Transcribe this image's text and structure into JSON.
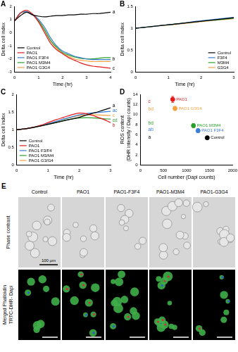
{
  "chart_data": [
    {
      "panel": "A",
      "type": "line",
      "x_label": "Time (hr)",
      "y_label": "Delta cell index",
      "x": [
        0,
        0.25,
        0.5,
        0.75,
        1,
        1.25,
        1.5,
        1.75,
        2,
        2.25,
        2.5,
        2.75,
        3,
        3.25,
        3.5,
        3.75,
        4
      ],
      "series": [
        {
          "name": "Control",
          "color": "#000000",
          "values": [
            0.9,
            1.3,
            1.55,
            1.35,
            1.25,
            1.2,
            1.25,
            1.3,
            1.3,
            1.35,
            1.35,
            1.4,
            1.4,
            1.45,
            1.45,
            1.5,
            1.55
          ]
        },
        {
          "name": "PAO1",
          "color": "#e41a1c",
          "values": [
            0.9,
            1.5,
            1.7,
            1.4,
            0.8,
            0,
            -0.8,
            -1.3,
            -1.6,
            -1.9,
            -2.1,
            -2.3,
            -2.45,
            -2.55,
            -2.6,
            -2.65,
            -2.7
          ]
        },
        {
          "name": "PAO1 F3F4",
          "color": "#3a7fd5",
          "values": [
            0.9,
            1.5,
            1.6,
            1.4,
            1.0,
            0.4,
            -0.4,
            -1.0,
            -1.4,
            -1.6,
            -1.8,
            -1.9,
            -2.0,
            -2.05,
            -2.05,
            -2.05,
            -2.05
          ]
        },
        {
          "name": "PAO1 M3M4",
          "color": "#2ca02c",
          "values": [
            0.9,
            1.5,
            1.6,
            1.35,
            0.9,
            0.2,
            -0.6,
            -1.1,
            -1.5,
            -1.7,
            -1.85,
            -1.95,
            -2.0,
            -2.0,
            -1.95,
            -1.9,
            -1.9
          ]
        },
        {
          "name": "PAO1 G3G4",
          "color": "#f5a142",
          "values": [
            0.9,
            1.5,
            1.6,
            1.4,
            0.9,
            0.2,
            -0.6,
            -1.2,
            -1.6,
            -1.8,
            -2.0,
            -2.1,
            -2.15,
            -2.2,
            -2.2,
            -2.2,
            -2.2
          ]
        }
      ],
      "xlim": [
        0,
        4
      ],
      "xticks": [
        0,
        1,
        2,
        3,
        4
      ],
      "ylim": [
        -3,
        2
      ],
      "yticks": [
        -3,
        -2,
        -1,
        0,
        1,
        2
      ],
      "grid": false,
      "legend": "lower left",
      "annotations": [
        {
          "text": "a",
          "x": 4.08,
          "y": 1.55,
          "color": "#000000"
        },
        {
          "text": "b",
          "x": 4.08,
          "y": -2.0,
          "color": "#000000"
        },
        {
          "text": "c",
          "x": 4.08,
          "y": -2.7,
          "color": "#000000"
        }
      ]
    },
    {
      "panel": "B",
      "type": "line",
      "x_label": "Time (hr)",
      "y_label": "Delta cell index",
      "x": [
        0,
        0.25,
        0.5,
        0.75,
        1,
        1.25,
        1.5,
        1.75,
        2,
        2.25,
        2.5,
        2.75,
        3
      ],
      "series": [
        {
          "name": "Control",
          "color": "#000000",
          "values": [
            1.0,
            1.02,
            1.04,
            1.06,
            1.08,
            1.1,
            1.12,
            1.14,
            1.16,
            1.18,
            1.2,
            1.22,
            1.24
          ]
        },
        {
          "name": "F3F4",
          "color": "#3a7fd5",
          "values": [
            1.0,
            1.02,
            1.04,
            1.06,
            1.08,
            1.1,
            1.12,
            1.15,
            1.17,
            1.19,
            1.21,
            1.23,
            1.25
          ]
        },
        {
          "name": "M3M4",
          "color": "#2ca02c",
          "values": [
            1.0,
            1.02,
            1.04,
            1.06,
            1.08,
            1.1,
            1.12,
            1.14,
            1.16,
            1.18,
            1.19,
            1.21,
            1.23
          ]
        },
        {
          "name": "G3G4",
          "color": "#f5a142",
          "values": [
            1.0,
            1.02,
            1.04,
            1.06,
            1.07,
            1.09,
            1.11,
            1.13,
            1.15,
            1.17,
            1.19,
            1.2,
            1.22
          ]
        }
      ],
      "xlim": [
        0,
        3
      ],
      "xticks": [
        0,
        1,
        2,
        3
      ],
      "ylim": [
        0,
        1.5
      ],
      "yticks": [
        0,
        0.5,
        1,
        1.5
      ],
      "grid": false,
      "legend": "lower right"
    },
    {
      "panel": "C",
      "type": "line",
      "x_label": "Time (hr)",
      "y_label": "Delta cell index",
      "x": [
        0,
        0.25,
        0.5,
        0.75,
        1,
        1.25,
        1.5,
        1.75,
        2,
        2.25,
        2.5,
        2.75,
        3
      ],
      "series": [
        {
          "name": "Control",
          "color": "#000000",
          "values": [
            1.0,
            1.02,
            1.06,
            1.1,
            1.15,
            1.2,
            1.25,
            1.3,
            1.35,
            1.42,
            1.48,
            1.55,
            1.62
          ]
        },
        {
          "name": "PAO1",
          "color": "#e41a1c",
          "values": [
            1.0,
            1.02,
            1.06,
            1.12,
            1.2,
            1.28,
            1.35,
            1.42,
            1.47,
            1.45,
            1.38,
            1.3,
            1.2
          ]
        },
        {
          "name": "PAO1 F3/F4",
          "color": "#3a7fd5",
          "values": [
            1.0,
            1.02,
            1.06,
            1.11,
            1.17,
            1.23,
            1.3,
            1.36,
            1.42,
            1.46,
            1.48,
            1.5,
            1.52
          ]
        },
        {
          "name": "PAO1 M3/M4",
          "color": "#2ca02c",
          "values": [
            1.0,
            1.02,
            1.05,
            1.1,
            1.15,
            1.2,
            1.26,
            1.3,
            1.33,
            1.34,
            1.33,
            1.31,
            1.3
          ]
        },
        {
          "name": "PAO1 G3/G4",
          "color": "#f5a142",
          "values": [
            1.0,
            1.02,
            1.06,
            1.11,
            1.17,
            1.23,
            1.3,
            1.35,
            1.4,
            1.42,
            1.42,
            1.41,
            1.4
          ]
        }
      ],
      "xlim": [
        0,
        3
      ],
      "xticks": [
        0,
        1,
        2,
        3
      ],
      "ylim": [
        0,
        2
      ],
      "yticks": [
        0,
        0.5,
        1,
        1.5,
        2
      ],
      "grid": false,
      "legend": "lower left",
      "annotations": [
        {
          "text": "a",
          "x": 3.06,
          "y": 1.68,
          "color": "#000000"
        },
        {
          "text": "ac",
          "x": 3.06,
          "y": 1.54,
          "color": "#3a7fd5"
        },
        {
          "text": "c",
          "x": 3.06,
          "y": 1.4,
          "color": "#f5a142"
        },
        {
          "text": "cd",
          "x": 3.06,
          "y": 1.26,
          "color": "#2ca02c"
        },
        {
          "text": "b",
          "x": 3.06,
          "y": 1.12,
          "color": "#e41a1c"
        }
      ]
    },
    {
      "panel": "D",
      "type": "scatter",
      "x_label": "Cell number (Dapi counts)",
      "y_label": "ROS content (DHR intensity / Dapi counts)",
      "series": [
        {
          "name": "PAO1",
          "color": "#e41a1c",
          "x": [
            700
          ],
          "values": [
            13
          ],
          "errors": [
            0.6
          ]
        },
        {
          "name": "PAO1 G3G4",
          "color": "#f5a142",
          "x": [
            750
          ],
          "values": [
            11.2
          ],
          "errors": [
            0.4
          ]
        },
        {
          "name": "PAO1 M3M4",
          "color": "#2ca02c",
          "x": [
            1150
          ],
          "values": [
            7.8
          ],
          "errors": [
            0.4
          ]
        },
        {
          "name": "PAO1 F3F4",
          "color": "#3a7fd5",
          "x": [
            1250
          ],
          "values": [
            6.8
          ],
          "errors": [
            0.4
          ]
        },
        {
          "name": "Control",
          "color": "#000000",
          "x": [
            1450
          ],
          "values": [
            5.4
          ],
          "errors": [
            0.3
          ]
        }
      ],
      "xlim": [
        0,
        2000
      ],
      "xticks": [
        0,
        500,
        1000,
        1500,
        2000
      ],
      "ylim": [
        0,
        14
      ],
      "yticks": [
        0,
        2,
        4,
        6,
        8,
        10,
        12,
        14
      ],
      "grid": false,
      "annotations": [
        {
          "text": "c",
          "x": 170,
          "y": 12.6,
          "color": "#e41a1c"
        },
        {
          "text": "bd",
          "x": 170,
          "y": 11.1,
          "color": "#f5a142"
        },
        {
          "text": "bd",
          "x": 170,
          "y": 8.3,
          "color": "#2ca02c"
        },
        {
          "text": "ab",
          "x": 170,
          "y": 7.0,
          "color": "#3a7fd5"
        },
        {
          "text": "a",
          "x": 170,
          "y": 5.5,
          "color": "#000000"
        }
      ]
    }
  ],
  "image_panel": {
    "panel": "E",
    "columns": [
      "Control",
      "PAO1",
      "PAO1-F3F4",
      "PAO1-M3M4",
      "PAO1-G3G4"
    ],
    "rows": [
      "Phase contrast",
      "Merged Phalloidin TRTC-DHR- Dapi"
    ],
    "scale_bar": "100 µm"
  }
}
